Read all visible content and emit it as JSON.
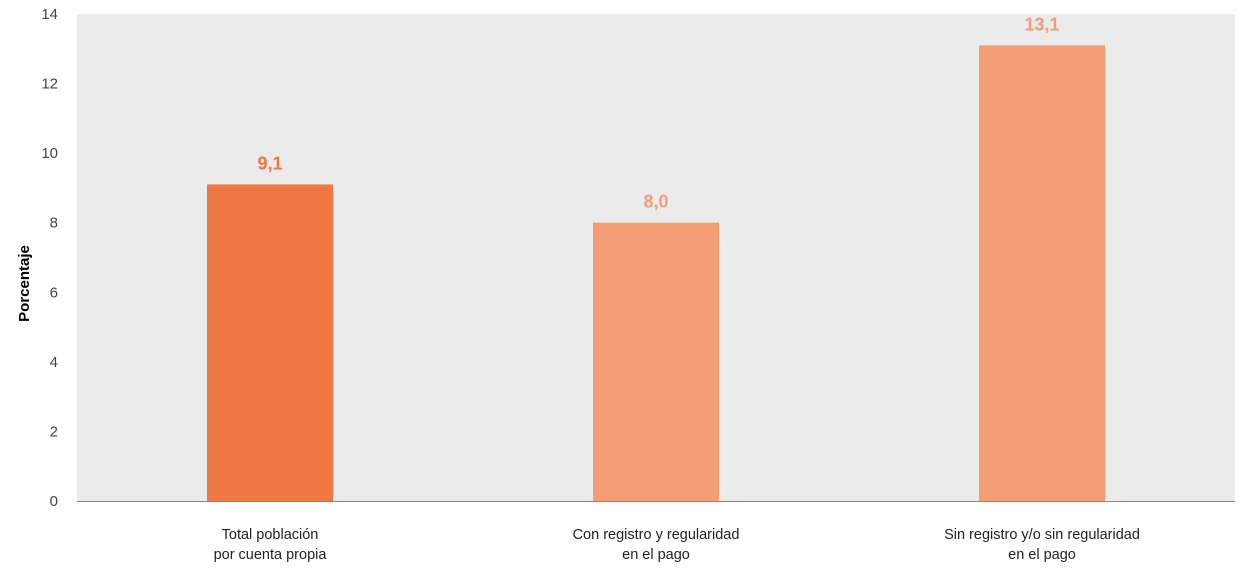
{
  "chart_data": {
    "type": "bar",
    "title": "",
    "xlabel": "",
    "ylabel": "Porcentaje",
    "ylim": [
      0,
      14
    ],
    "yticks": [
      0,
      2,
      4,
      6,
      8,
      10,
      12,
      14
    ],
    "grid": false,
    "legend": "none",
    "categories": [
      [
        "Total población",
        "por cuenta propia"
      ],
      [
        "Con registro y regularidad",
        "en el pago"
      ],
      [
        "Sin registro y/o sin regularidad",
        "en el pago"
      ]
    ],
    "values": [
      9.1,
      8.0,
      13.1
    ],
    "value_labels": [
      "9,1",
      "8,0",
      "13,1"
    ],
    "colors": {
      "plot_background": "#ebebeb",
      "bars": [
        "#ef7744",
        "#f39d74",
        "#f39d74"
      ],
      "value_labels": [
        "#ef7744",
        "#f39d74",
        "#f39d74"
      ],
      "axis_line": "#888888",
      "tick_text": "#444444",
      "category_text": "#222222"
    }
  }
}
